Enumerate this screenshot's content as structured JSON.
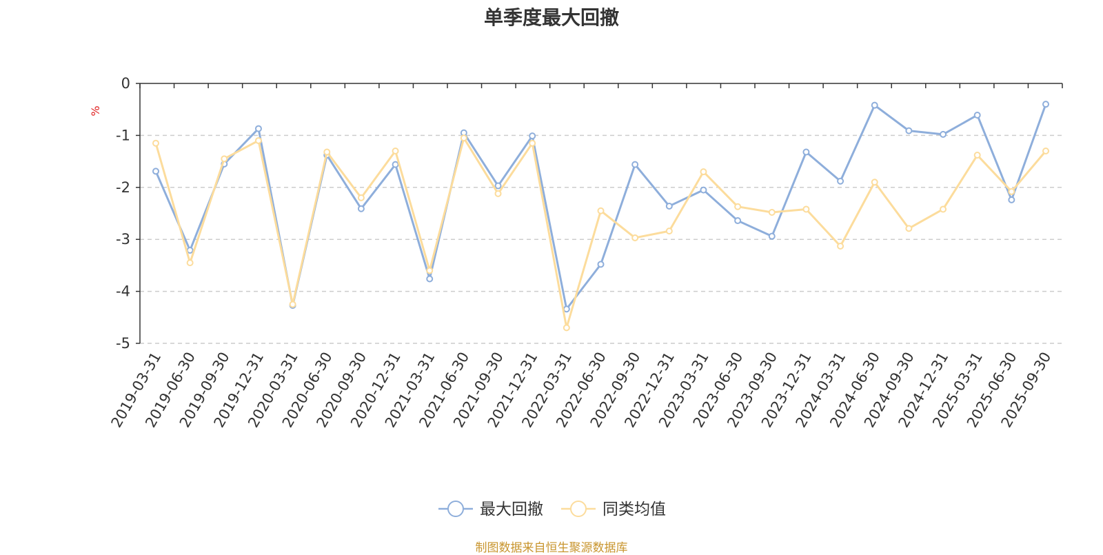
{
  "title": "单季度最大回撤",
  "source_note": "制图数据来自恒生聚源数据库",
  "chart_data": {
    "type": "line",
    "title": "单季度最大回撤",
    "ylabel": "%",
    "ylim": [
      -5,
      0
    ],
    "yticks": [
      0,
      -1,
      -2,
      -3,
      -4,
      -5
    ],
    "grid": true,
    "legend_position": "bottom-center",
    "categories": [
      "2019-03-31",
      "2019-06-30",
      "2019-09-30",
      "2019-12-31",
      "2020-03-31",
      "2020-06-30",
      "2020-09-30",
      "2020-12-31",
      "2021-03-31",
      "2021-06-30",
      "2021-09-30",
      "2021-12-31",
      "2022-03-31",
      "2022-06-30",
      "2022-09-30",
      "2022-12-31",
      "2023-03-31",
      "2023-06-30",
      "2023-09-30",
      "2023-12-31",
      "2024-03-31",
      "2024-06-30",
      "2024-09-30",
      "2024-12-31",
      "2025-03-31",
      "2025-06-30",
      "2025-09-30"
    ],
    "series": [
      {
        "name": "最大回撤",
        "color": "#8eaedb",
        "values": [
          -1.69,
          -3.21,
          -1.55,
          -0.87,
          -4.27,
          -1.38,
          -2.41,
          -1.56,
          -3.76,
          -0.95,
          -1.97,
          -1.01,
          -4.34,
          -3.48,
          -1.56,
          -2.36,
          -2.05,
          -2.64,
          -2.94,
          -1.32,
          -1.88,
          -0.42,
          -0.91,
          -0.98,
          -0.61,
          -2.24,
          -0.4
        ]
      },
      {
        "name": "同类均值",
        "color": "#fcdc9c",
        "values": [
          -1.15,
          -3.45,
          -1.45,
          -1.1,
          -4.25,
          -1.32,
          -2.2,
          -1.3,
          -3.6,
          -1.05,
          -2.12,
          -1.15,
          -4.7,
          -2.45,
          -2.97,
          -2.84,
          -1.7,
          -2.37,
          -2.48,
          -2.42,
          -3.13,
          -1.9,
          -2.79,
          -2.42,
          -1.38,
          -2.08,
          -1.3
        ]
      }
    ]
  }
}
